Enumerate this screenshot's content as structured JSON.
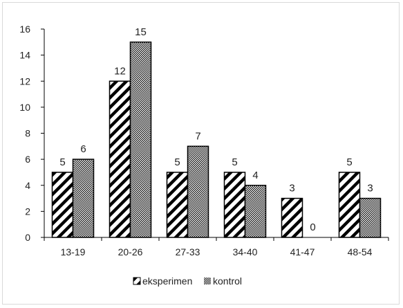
{
  "chart_data": {
    "type": "bar",
    "categories": [
      "13-19",
      "20-26",
      "27-33",
      "34-40",
      "41-47",
      "48-54"
    ],
    "series": [
      {
        "name": "eksperimen",
        "values": [
          5,
          12,
          5,
          5,
          3,
          5
        ]
      },
      {
        "name": "kontrol",
        "values": [
          6,
          15,
          7,
          4,
          0,
          3
        ]
      }
    ],
    "ylim": [
      0,
      16
    ],
    "yticks": [
      0,
      2,
      4,
      6,
      8,
      10,
      12,
      14,
      16
    ],
    "grid": false,
    "legend_position": "bottom",
    "data_labels": true,
    "title": "",
    "xlabel": "",
    "ylabel": "",
    "colors": {
      "bar_outline": "#000000",
      "hatch": "#000000",
      "axis": "#000000"
    }
  }
}
